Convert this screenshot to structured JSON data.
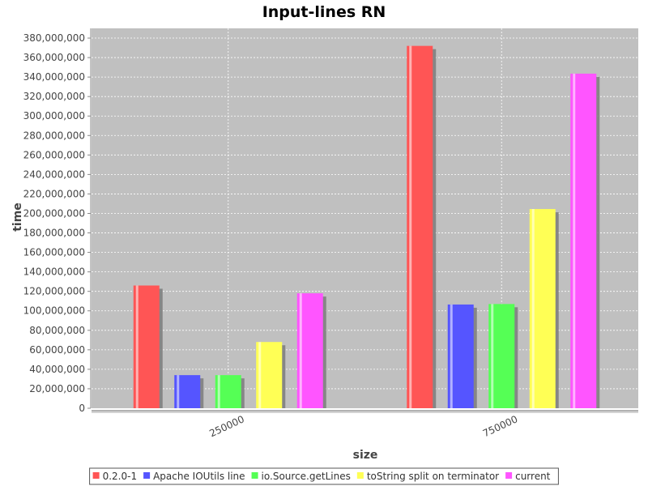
{
  "chart_data": {
    "type": "bar",
    "title": "Input-lines RN",
    "xlabel": "size",
    "ylabel": "time",
    "categories": [
      "250000",
      "750000"
    ],
    "ylim": [
      0,
      390000000
    ],
    "yticks": [
      0,
      20000000,
      40000000,
      60000000,
      80000000,
      100000000,
      120000000,
      140000000,
      160000000,
      180000000,
      200000000,
      220000000,
      240000000,
      260000000,
      280000000,
      300000000,
      320000000,
      340000000,
      360000000,
      380000000
    ],
    "series": [
      {
        "name": "0.2.0-1",
        "color": "#ff5555",
        "values": [
          126000000,
          372000000
        ]
      },
      {
        "name": "Apache IOUtils line",
        "color": "#5555ff",
        "values": [
          34000000,
          106500000
        ]
      },
      {
        "name": "io.Source.getLines",
        "color": "#55ff55",
        "values": [
          34000000,
          107000000
        ]
      },
      {
        "name": "toString split on terminator",
        "color": "#ffff55",
        "values": [
          68000000,
          204500000
        ]
      },
      {
        "name": "current",
        "color": "#ff55ff",
        "values": [
          118000000,
          343500000
        ]
      }
    ],
    "grid": true,
    "legend_position": "bottom"
  }
}
